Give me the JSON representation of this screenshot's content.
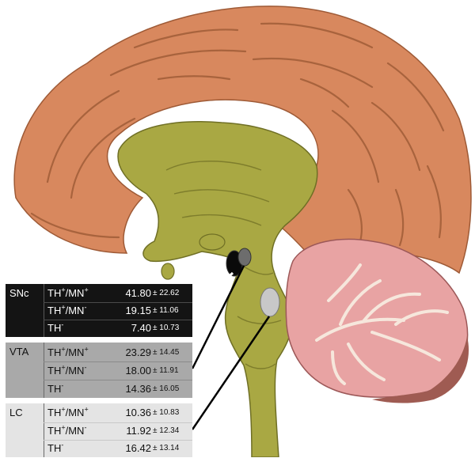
{
  "structures": [
    "cerebral-cortex",
    "brainstem",
    "cerebellum",
    "substantia-nigra-marker",
    "ventral-tegmental-area-marker",
    "locus-coeruleus-marker"
  ],
  "colors": {
    "cortex": "#d8885e",
    "brainstem": "#a9a843",
    "cerebellum": "#e8a3a3",
    "snc_panel": "#141414",
    "vta_panel": "#a9a9a9",
    "lc_panel": "#e4e4e4"
  },
  "table": [
    {
      "region": "SNc",
      "rows": [
        {
          "type_base1": "TH",
          "type_sup1": "+",
          "type_sep": "/MN",
          "type_sup2": "+",
          "mean": "41.80",
          "sd": "± 22.62"
        },
        {
          "type_base1": "TH",
          "type_sup1": "+",
          "type_sep": "/MN",
          "type_sup2": "-",
          "mean": "19.15",
          "sd": "± 11.06"
        },
        {
          "type_base1": "TH",
          "type_sup1": "-",
          "type_sep": "",
          "type_sup2": "",
          "mean": "7.40",
          "sd": "± 10.73"
        }
      ]
    },
    {
      "region": "VTA",
      "rows": [
        {
          "type_base1": "TH",
          "type_sup1": "+",
          "type_sep": "/MN",
          "type_sup2": "+",
          "mean": "23.29",
          "sd": "± 14.45"
        },
        {
          "type_base1": "TH",
          "type_sup1": "+",
          "type_sep": "/MN",
          "type_sup2": "-",
          "mean": "18.00",
          "sd": "± 11.91"
        },
        {
          "type_base1": "TH",
          "type_sup1": "-",
          "type_sep": "",
          "type_sup2": "",
          "mean": "14.36",
          "sd": "± 16.05"
        }
      ]
    },
    {
      "region": "LC",
      "rows": [
        {
          "type_base1": "TH",
          "type_sup1": "+",
          "type_sep": "/MN",
          "type_sup2": "+",
          "mean": "10.36",
          "sd": "± 10.83"
        },
        {
          "type_base1": "TH",
          "type_sup1": "+",
          "type_sep": "/MN",
          "type_sup2": "-",
          "mean": "11.92",
          "sd": "± 12.34"
        },
        {
          "type_base1": "TH",
          "type_sup1": "-",
          "type_sep": "",
          "type_sup2": "",
          "mean": "16.42",
          "sd": "± 13.14"
        }
      ]
    }
  ]
}
